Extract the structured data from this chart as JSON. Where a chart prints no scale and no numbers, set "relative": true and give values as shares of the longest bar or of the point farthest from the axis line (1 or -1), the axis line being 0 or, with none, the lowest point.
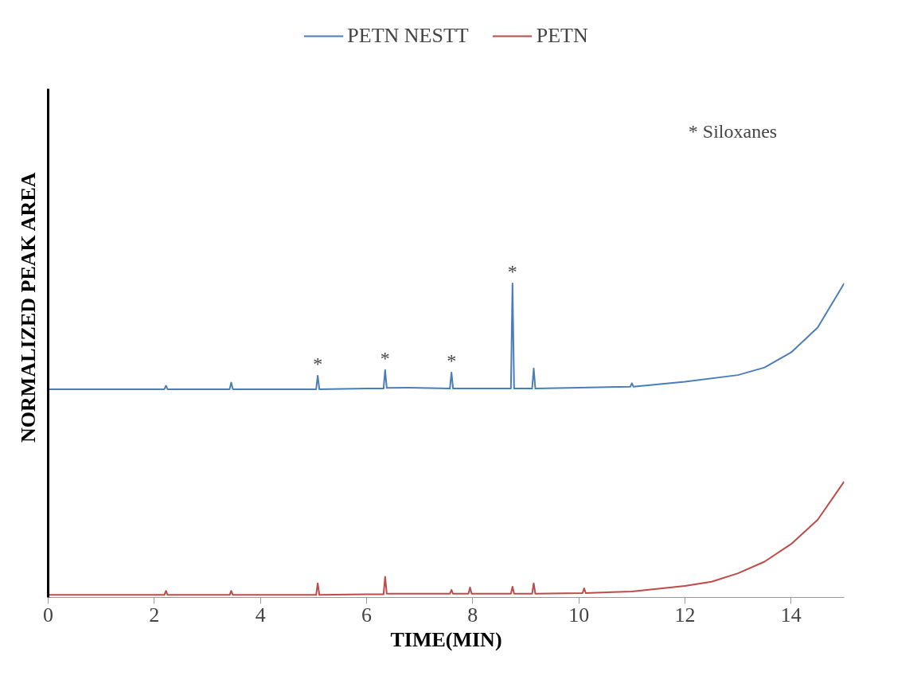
{
  "chart_data": {
    "type": "line",
    "relative": true,
    "xlabel": "TIME(MIN)",
    "ylabel": "NORMALIZED PEAK AREA",
    "xlim": [
      0,
      15
    ],
    "xticks": [
      0,
      2,
      4,
      6,
      8,
      10,
      12,
      14
    ],
    "grid": false,
    "legend": "top",
    "marker": "none",
    "line_style": "solid",
    "series": [
      {
        "name": "PETN NESTT",
        "color": "#4a7ebb",
        "x": [
          0,
          1,
          2.19,
          2.22,
          2.25,
          3,
          3.42,
          3.45,
          3.48,
          4,
          5.05,
          5.08,
          5.11,
          6,
          6.32,
          6.35,
          6.38,
          6.8,
          7.57,
          7.6,
          7.63,
          8.72,
          8.75,
          8.78,
          9.12,
          9.15,
          9.18,
          10,
          10.97,
          11,
          11.03,
          12,
          13,
          13.5,
          14,
          14.5,
          15
        ],
        "values": [
          0.663,
          0.663,
          0.663,
          0.674,
          0.663,
          0.663,
          0.663,
          0.684,
          0.663,
          0.663,
          0.663,
          0.706,
          0.663,
          0.665,
          0.665,
          0.724,
          0.667,
          0.668,
          0.665,
          0.716,
          0.665,
          0.665,
          1.0,
          0.665,
          0.665,
          0.729,
          0.665,
          0.668,
          0.671,
          0.682,
          0.671,
          0.687,
          0.708,
          0.732,
          0.78,
          0.859,
          1.0
        ]
      },
      {
        "name": "PETN",
        "color": "#be4b48",
        "x": [
          0,
          1,
          2.19,
          2.22,
          2.25,
          3,
          3.42,
          3.45,
          3.48,
          4,
          5.05,
          5.08,
          5.11,
          6,
          6.32,
          6.35,
          6.38,
          7,
          7.57,
          7.6,
          7.63,
          7.92,
          7.95,
          7.98,
          8.72,
          8.75,
          8.78,
          9.12,
          9.15,
          9.18,
          10.07,
          10.1,
          10.13,
          11,
          12,
          12.5,
          13,
          13.5,
          14,
          14.5,
          15
        ],
        "values": [
          0.008,
          0.008,
          0.008,
          0.021,
          0.008,
          0.008,
          0.008,
          0.021,
          0.008,
          0.008,
          0.008,
          0.045,
          0.008,
          0.01,
          0.01,
          0.066,
          0.012,
          0.012,
          0.012,
          0.024,
          0.012,
          0.012,
          0.032,
          0.012,
          0.012,
          0.034,
          0.012,
          0.012,
          0.045,
          0.012,
          0.014,
          0.029,
          0.014,
          0.019,
          0.037,
          0.05,
          0.077,
          0.114,
          0.17,
          0.247,
          0.369
        ]
      }
    ],
    "annotations": [
      {
        "text": "*",
        "x": 5.08,
        "y": 0.706
      },
      {
        "text": "*",
        "x": 6.35,
        "y": 0.724
      },
      {
        "text": "*",
        "x": 7.6,
        "y": 0.716
      },
      {
        "text": "*",
        "x": 8.75,
        "y": 1.0
      },
      "* Siloxanes"
    ]
  }
}
